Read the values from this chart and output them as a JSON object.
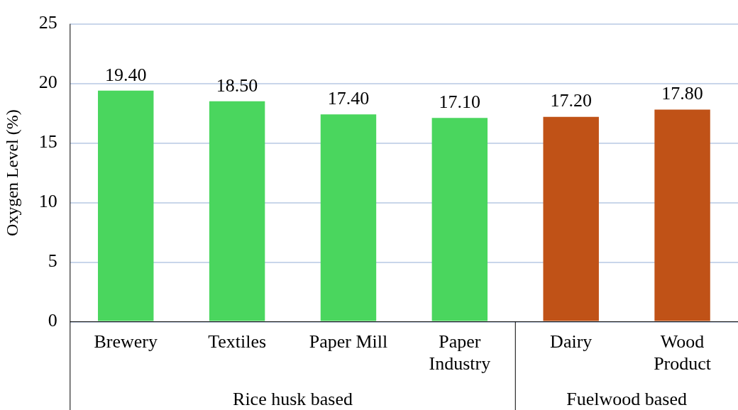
{
  "chart_data": {
    "type": "bar",
    "ylabel": "Oxygen Level (%)",
    "categories": [
      "Brewery",
      "Textiles",
      "Paper Mill",
      "Paper Industry",
      "Dairy",
      "Wood Product"
    ],
    "values": [
      19.4,
      18.5,
      17.4,
      17.1,
      17.2,
      17.8
    ],
    "colors": [
      "#4ad65e",
      "#4ad65e",
      "#4ad65e",
      "#4ad65e",
      "#c05217",
      "#c05217"
    ],
    "value_labels": [
      "19.40",
      "18.50",
      "17.40",
      "17.10",
      "17.20",
      "17.80"
    ],
    "ylim": [
      0,
      25
    ],
    "yticks": [
      0,
      5,
      10,
      15,
      20,
      25
    ],
    "grid": "y",
    "legend": false,
    "annotations": [
      "Rice husk based",
      "Fuelwood based"
    ]
  }
}
